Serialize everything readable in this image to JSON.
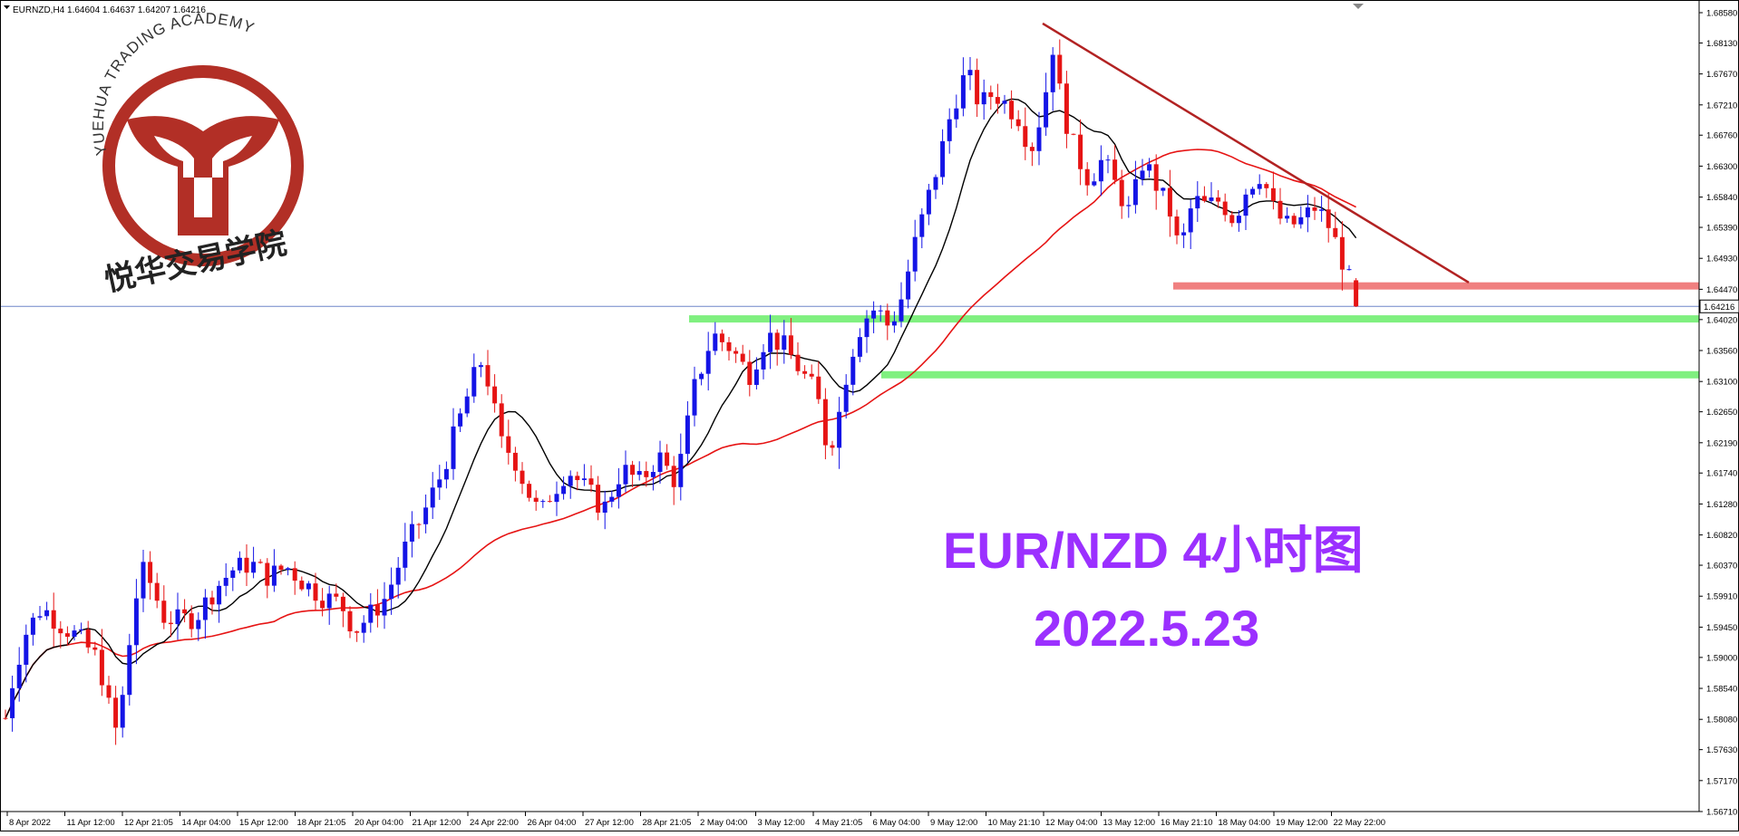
{
  "chart_data": {
    "type": "candlestick",
    "symbol_header": "EURNZD,H4  1.64604 1.64637 1.64207 1.64216",
    "ohlc": {
      "open": 1.64604,
      "high": 1.64637,
      "low": 1.64207,
      "close": 1.64216
    },
    "last_price_label": "1.64216",
    "y_range": [
      1.5671,
      1.6858
    ],
    "y_ticks": [
      "1.68580",
      "1.68130",
      "1.67670",
      "1.67210",
      "1.66760",
      "1.66300",
      "1.65840",
      "1.65390",
      "1.64930",
      "1.64470",
      "1.64020",
      "1.63560",
      "1.63100",
      "1.62650",
      "1.62190",
      "1.61740",
      "1.61280",
      "1.60820",
      "1.60370",
      "1.59910",
      "1.59450",
      "1.59000",
      "1.58540",
      "1.58080",
      "1.57630",
      "1.57170",
      "1.56710"
    ],
    "x_ticks": [
      "8 Apr 2022",
      "11 Apr 12:00",
      "12 Apr 21:05",
      "14 Apr 04:00",
      "15 Apr 12:00",
      "18 Apr 21:05",
      "20 Apr 04:00",
      "21 Apr 12:00",
      "24 Apr 22:00",
      "26 Apr 04:00",
      "27 Apr 12:00",
      "28 Apr 21:05",
      "2 May 04:00",
      "3 May 12:00",
      "4 May 21:05",
      "6 May 04:00",
      "9 May 12:00",
      "10 May 21:10",
      "12 May 04:00",
      "13 May 12:00",
      "16 May 21:10",
      "18 May 04:00",
      "19 May 12:00",
      "22 May 22:00"
    ],
    "overlay_title": "EUR/NZD 4小时图",
    "overlay_date": "2022.5.23",
    "logo": {
      "arc_text": "YUEHUA TRADING ACADEMY",
      "chinese_text": "悦华交易学院"
    },
    "levels": [
      {
        "price": 1.6452,
        "color": "#f08080"
      },
      {
        "price": 1.6403,
        "color": "#80f080"
      },
      {
        "price": 1.632,
        "color": "#80f080"
      }
    ],
    "trendline": {
      "start": {
        "price": 1.6842,
        "label": "12 May"
      },
      "end": {
        "price": 1.6457,
        "label": "23 May"
      },
      "color": "#b22222"
    },
    "series_colors": {
      "bull": "#1414e6",
      "bear": "#e61414",
      "fast_ma": "#000000",
      "slow_ma": "#e61414"
    }
  }
}
